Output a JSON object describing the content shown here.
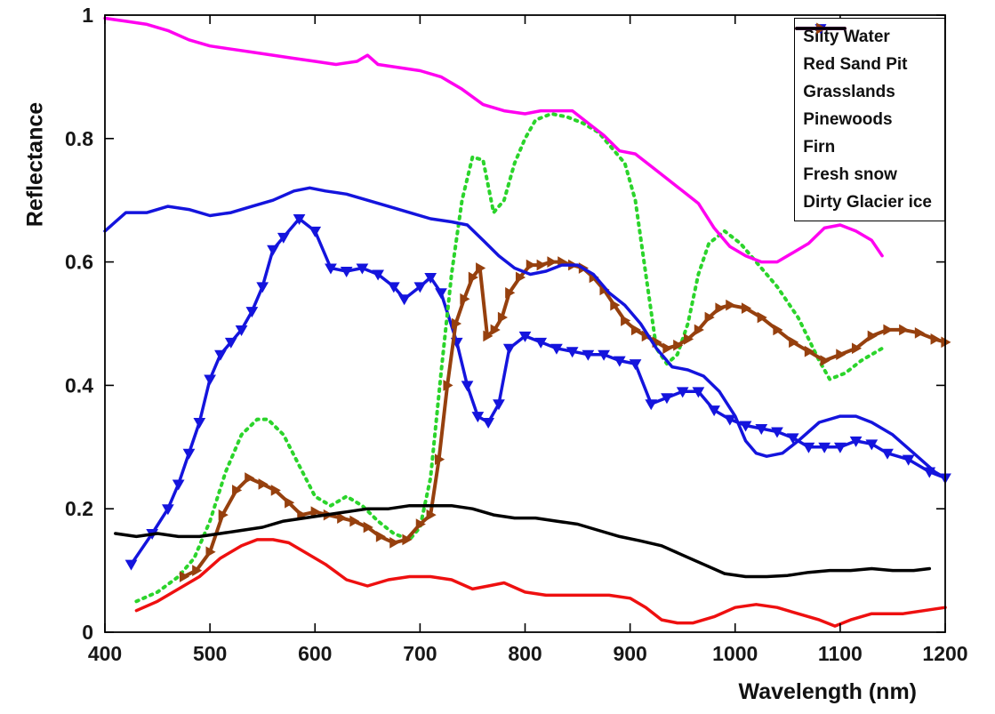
{
  "chart_data": {
    "type": "line",
    "title": "",
    "xlabel": "Wavelength (nm)",
    "ylabel": "Reflectance",
    "xlim": [
      400,
      1200
    ],
    "ylim": [
      0,
      1
    ],
    "xticks": [
      400,
      500,
      600,
      700,
      800,
      900,
      1000,
      1100,
      1200
    ],
    "yticks": [
      0,
      0.2,
      0.4,
      0.6,
      0.8,
      1
    ],
    "grid": false,
    "legend_position": "top-right",
    "series": [
      {
        "name": "Silty Water",
        "color": "#ee1010",
        "line_width": 3.5,
        "dash": "solid",
        "marker": "none",
        "x": [
          430,
          450,
          470,
          490,
          510,
          530,
          545,
          560,
          575,
          590,
          610,
          630,
          650,
          670,
          690,
          710,
          730,
          750,
          765,
          780,
          800,
          820,
          850,
          880,
          900,
          915,
          930,
          945,
          960,
          980,
          1000,
          1020,
          1040,
          1060,
          1080,
          1095,
          1110,
          1130,
          1160,
          1200
        ],
        "y": [
          0.035,
          0.05,
          0.07,
          0.09,
          0.12,
          0.14,
          0.15,
          0.15,
          0.145,
          0.13,
          0.11,
          0.085,
          0.075,
          0.085,
          0.09,
          0.09,
          0.085,
          0.07,
          0.075,
          0.08,
          0.065,
          0.06,
          0.06,
          0.06,
          0.055,
          0.04,
          0.02,
          0.015,
          0.015,
          0.025,
          0.04,
          0.045,
          0.04,
          0.03,
          0.02,
          0.01,
          0.02,
          0.03,
          0.03,
          0.04
        ]
      },
      {
        "name": "Red Sand Pit",
        "color": "#1414dd",
        "line_width": 3.5,
        "dash": "solid",
        "marker": "triangle-down",
        "x": [
          425,
          445,
          460,
          470,
          480,
          490,
          500,
          510,
          520,
          530,
          540,
          550,
          560,
          570,
          585,
          600,
          615,
          630,
          645,
          660,
          675,
          685,
          700,
          710,
          720,
          735,
          745,
          755,
          765,
          775,
          785,
          800,
          815,
          830,
          845,
          860,
          875,
          890,
          905,
          920,
          935,
          950,
          965,
          980,
          995,
          1010,
          1025,
          1040,
          1055,
          1070,
          1085,
          1100,
          1115,
          1130,
          1145,
          1165,
          1185,
          1200
        ],
        "y": [
          0.11,
          0.16,
          0.2,
          0.24,
          0.29,
          0.34,
          0.41,
          0.45,
          0.47,
          0.49,
          0.52,
          0.56,
          0.62,
          0.64,
          0.67,
          0.65,
          0.59,
          0.585,
          0.59,
          0.58,
          0.56,
          0.54,
          0.56,
          0.575,
          0.55,
          0.47,
          0.4,
          0.35,
          0.34,
          0.37,
          0.46,
          0.48,
          0.47,
          0.46,
          0.455,
          0.45,
          0.45,
          0.44,
          0.435,
          0.37,
          0.38,
          0.39,
          0.39,
          0.36,
          0.345,
          0.335,
          0.33,
          0.325,
          0.315,
          0.3,
          0.3,
          0.3,
          0.31,
          0.305,
          0.29,
          0.28,
          0.26,
          0.25
        ]
      },
      {
        "name": "Grasslands",
        "color": "#2bd42b",
        "line_width": 4,
        "dash": "dotted",
        "marker": "none",
        "x": [
          430,
          450,
          470,
          485,
          500,
          515,
          530,
          545,
          555,
          570,
          585,
          600,
          615,
          630,
          645,
          660,
          675,
          690,
          700,
          710,
          720,
          730,
          740,
          750,
          760,
          770,
          780,
          790,
          800,
          810,
          825,
          840,
          855,
          870,
          885,
          895,
          905,
          915,
          925,
          935,
          945,
          955,
          965,
          975,
          990,
          1005,
          1020,
          1040,
          1060,
          1080,
          1090,
          1105,
          1120,
          1140
        ],
        "y": [
          0.05,
          0.065,
          0.09,
          0.12,
          0.18,
          0.26,
          0.32,
          0.345,
          0.345,
          0.32,
          0.27,
          0.22,
          0.205,
          0.22,
          0.205,
          0.18,
          0.16,
          0.15,
          0.17,
          0.25,
          0.42,
          0.58,
          0.7,
          0.77,
          0.765,
          0.68,
          0.7,
          0.76,
          0.8,
          0.83,
          0.84,
          0.835,
          0.825,
          0.81,
          0.78,
          0.76,
          0.7,
          0.58,
          0.46,
          0.435,
          0.45,
          0.5,
          0.58,
          0.63,
          0.65,
          0.63,
          0.6,
          0.56,
          0.51,
          0.44,
          0.41,
          0.42,
          0.44,
          0.46
        ]
      },
      {
        "name": "Pinewoods",
        "color": "#96400e",
        "line_width": 4,
        "dash": "solid",
        "marker": "triangle-right",
        "x": [
          475,
          487,
          500,
          512,
          525,
          537,
          550,
          562,
          575,
          587,
          600,
          612,
          625,
          637,
          650,
          662,
          675,
          687,
          700,
          710,
          718,
          726,
          734,
          742,
          750,
          757,
          764,
          771,
          778,
          785,
          795,
          805,
          815,
          825,
          835,
          845,
          855,
          865,
          875,
          885,
          895,
          905,
          915,
          925,
          935,
          945,
          955,
          965,
          975,
          985,
          995,
          1010,
          1025,
          1040,
          1055,
          1070,
          1085,
          1100,
          1115,
          1130,
          1145,
          1160,
          1175,
          1190,
          1200
        ],
        "y": [
          0.09,
          0.1,
          0.13,
          0.19,
          0.23,
          0.25,
          0.24,
          0.23,
          0.21,
          0.19,
          0.195,
          0.19,
          0.185,
          0.18,
          0.17,
          0.155,
          0.145,
          0.15,
          0.175,
          0.19,
          0.28,
          0.4,
          0.5,
          0.54,
          0.575,
          0.59,
          0.48,
          0.49,
          0.51,
          0.55,
          0.575,
          0.595,
          0.595,
          0.6,
          0.6,
          0.595,
          0.59,
          0.575,
          0.555,
          0.53,
          0.505,
          0.49,
          0.48,
          0.47,
          0.46,
          0.465,
          0.475,
          0.49,
          0.51,
          0.525,
          0.53,
          0.525,
          0.51,
          0.49,
          0.47,
          0.455,
          0.44,
          0.45,
          0.46,
          0.48,
          0.49,
          0.49,
          0.485,
          0.475,
          0.47
        ]
      },
      {
        "name": "Firn",
        "color": "#1414dd",
        "line_width": 3.5,
        "dash": "solid",
        "marker": "none",
        "x": [
          400,
          420,
          440,
          460,
          480,
          500,
          520,
          540,
          560,
          580,
          595,
          610,
          630,
          650,
          670,
          690,
          710,
          730,
          745,
          760,
          775,
          790,
          805,
          820,
          835,
          850,
          865,
          880,
          895,
          910,
          925,
          940,
          955,
          970,
          985,
          1000,
          1010,
          1020,
          1030,
          1045,
          1060,
          1080,
          1100,
          1115,
          1130,
          1150,
          1170,
          1190,
          1200
        ],
        "y": [
          0.65,
          0.68,
          0.68,
          0.69,
          0.685,
          0.675,
          0.68,
          0.69,
          0.7,
          0.715,
          0.72,
          0.715,
          0.71,
          0.7,
          0.69,
          0.68,
          0.67,
          0.665,
          0.66,
          0.635,
          0.61,
          0.59,
          0.58,
          0.585,
          0.595,
          0.595,
          0.58,
          0.55,
          0.53,
          0.5,
          0.46,
          0.43,
          0.425,
          0.415,
          0.39,
          0.35,
          0.31,
          0.29,
          0.285,
          0.29,
          0.31,
          0.34,
          0.35,
          0.35,
          0.34,
          0.32,
          0.29,
          0.26,
          0.25
        ]
      },
      {
        "name": "Fresh snow",
        "color": "#ff00f0",
        "line_width": 3.5,
        "dash": "solid",
        "marker": "none",
        "x": [
          400,
          420,
          440,
          460,
          480,
          500,
          520,
          540,
          560,
          580,
          600,
          620,
          640,
          650,
          660,
          680,
          700,
          720,
          740,
          760,
          780,
          800,
          815,
          830,
          845,
          860,
          875,
          890,
          905,
          920,
          935,
          950,
          965,
          980,
          995,
          1010,
          1025,
          1040,
          1055,
          1070,
          1085,
          1100,
          1115,
          1130,
          1140
        ],
        "y": [
          0.995,
          0.99,
          0.985,
          0.975,
          0.96,
          0.95,
          0.945,
          0.94,
          0.935,
          0.93,
          0.925,
          0.92,
          0.925,
          0.935,
          0.92,
          0.915,
          0.91,
          0.9,
          0.88,
          0.855,
          0.845,
          0.84,
          0.845,
          0.845,
          0.845,
          0.825,
          0.805,
          0.78,
          0.775,
          0.755,
          0.735,
          0.715,
          0.695,
          0.655,
          0.625,
          0.61,
          0.6,
          0.6,
          0.615,
          0.63,
          0.655,
          0.66,
          0.65,
          0.635,
          0.61
        ]
      },
      {
        "name": "Dirty Glacier ice",
        "color": "#000000",
        "line_width": 3.5,
        "dash": "solid",
        "marker": "none",
        "x": [
          410,
          430,
          450,
          470,
          490,
          510,
          530,
          550,
          570,
          590,
          610,
          630,
          650,
          670,
          690,
          710,
          730,
          750,
          770,
          790,
          810,
          830,
          850,
          870,
          890,
          910,
          930,
          950,
          970,
          990,
          1010,
          1030,
          1050,
          1070,
          1090,
          1110,
          1130,
          1150,
          1170,
          1185
        ],
        "y": [
          0.16,
          0.155,
          0.16,
          0.155,
          0.155,
          0.16,
          0.165,
          0.17,
          0.18,
          0.185,
          0.19,
          0.195,
          0.2,
          0.2,
          0.205,
          0.205,
          0.205,
          0.2,
          0.19,
          0.185,
          0.185,
          0.18,
          0.175,
          0.165,
          0.155,
          0.148,
          0.14,
          0.125,
          0.11,
          0.095,
          0.09,
          0.09,
          0.092,
          0.097,
          0.1,
          0.1,
          0.103,
          0.1,
          0.1,
          0.103
        ]
      }
    ]
  }
}
